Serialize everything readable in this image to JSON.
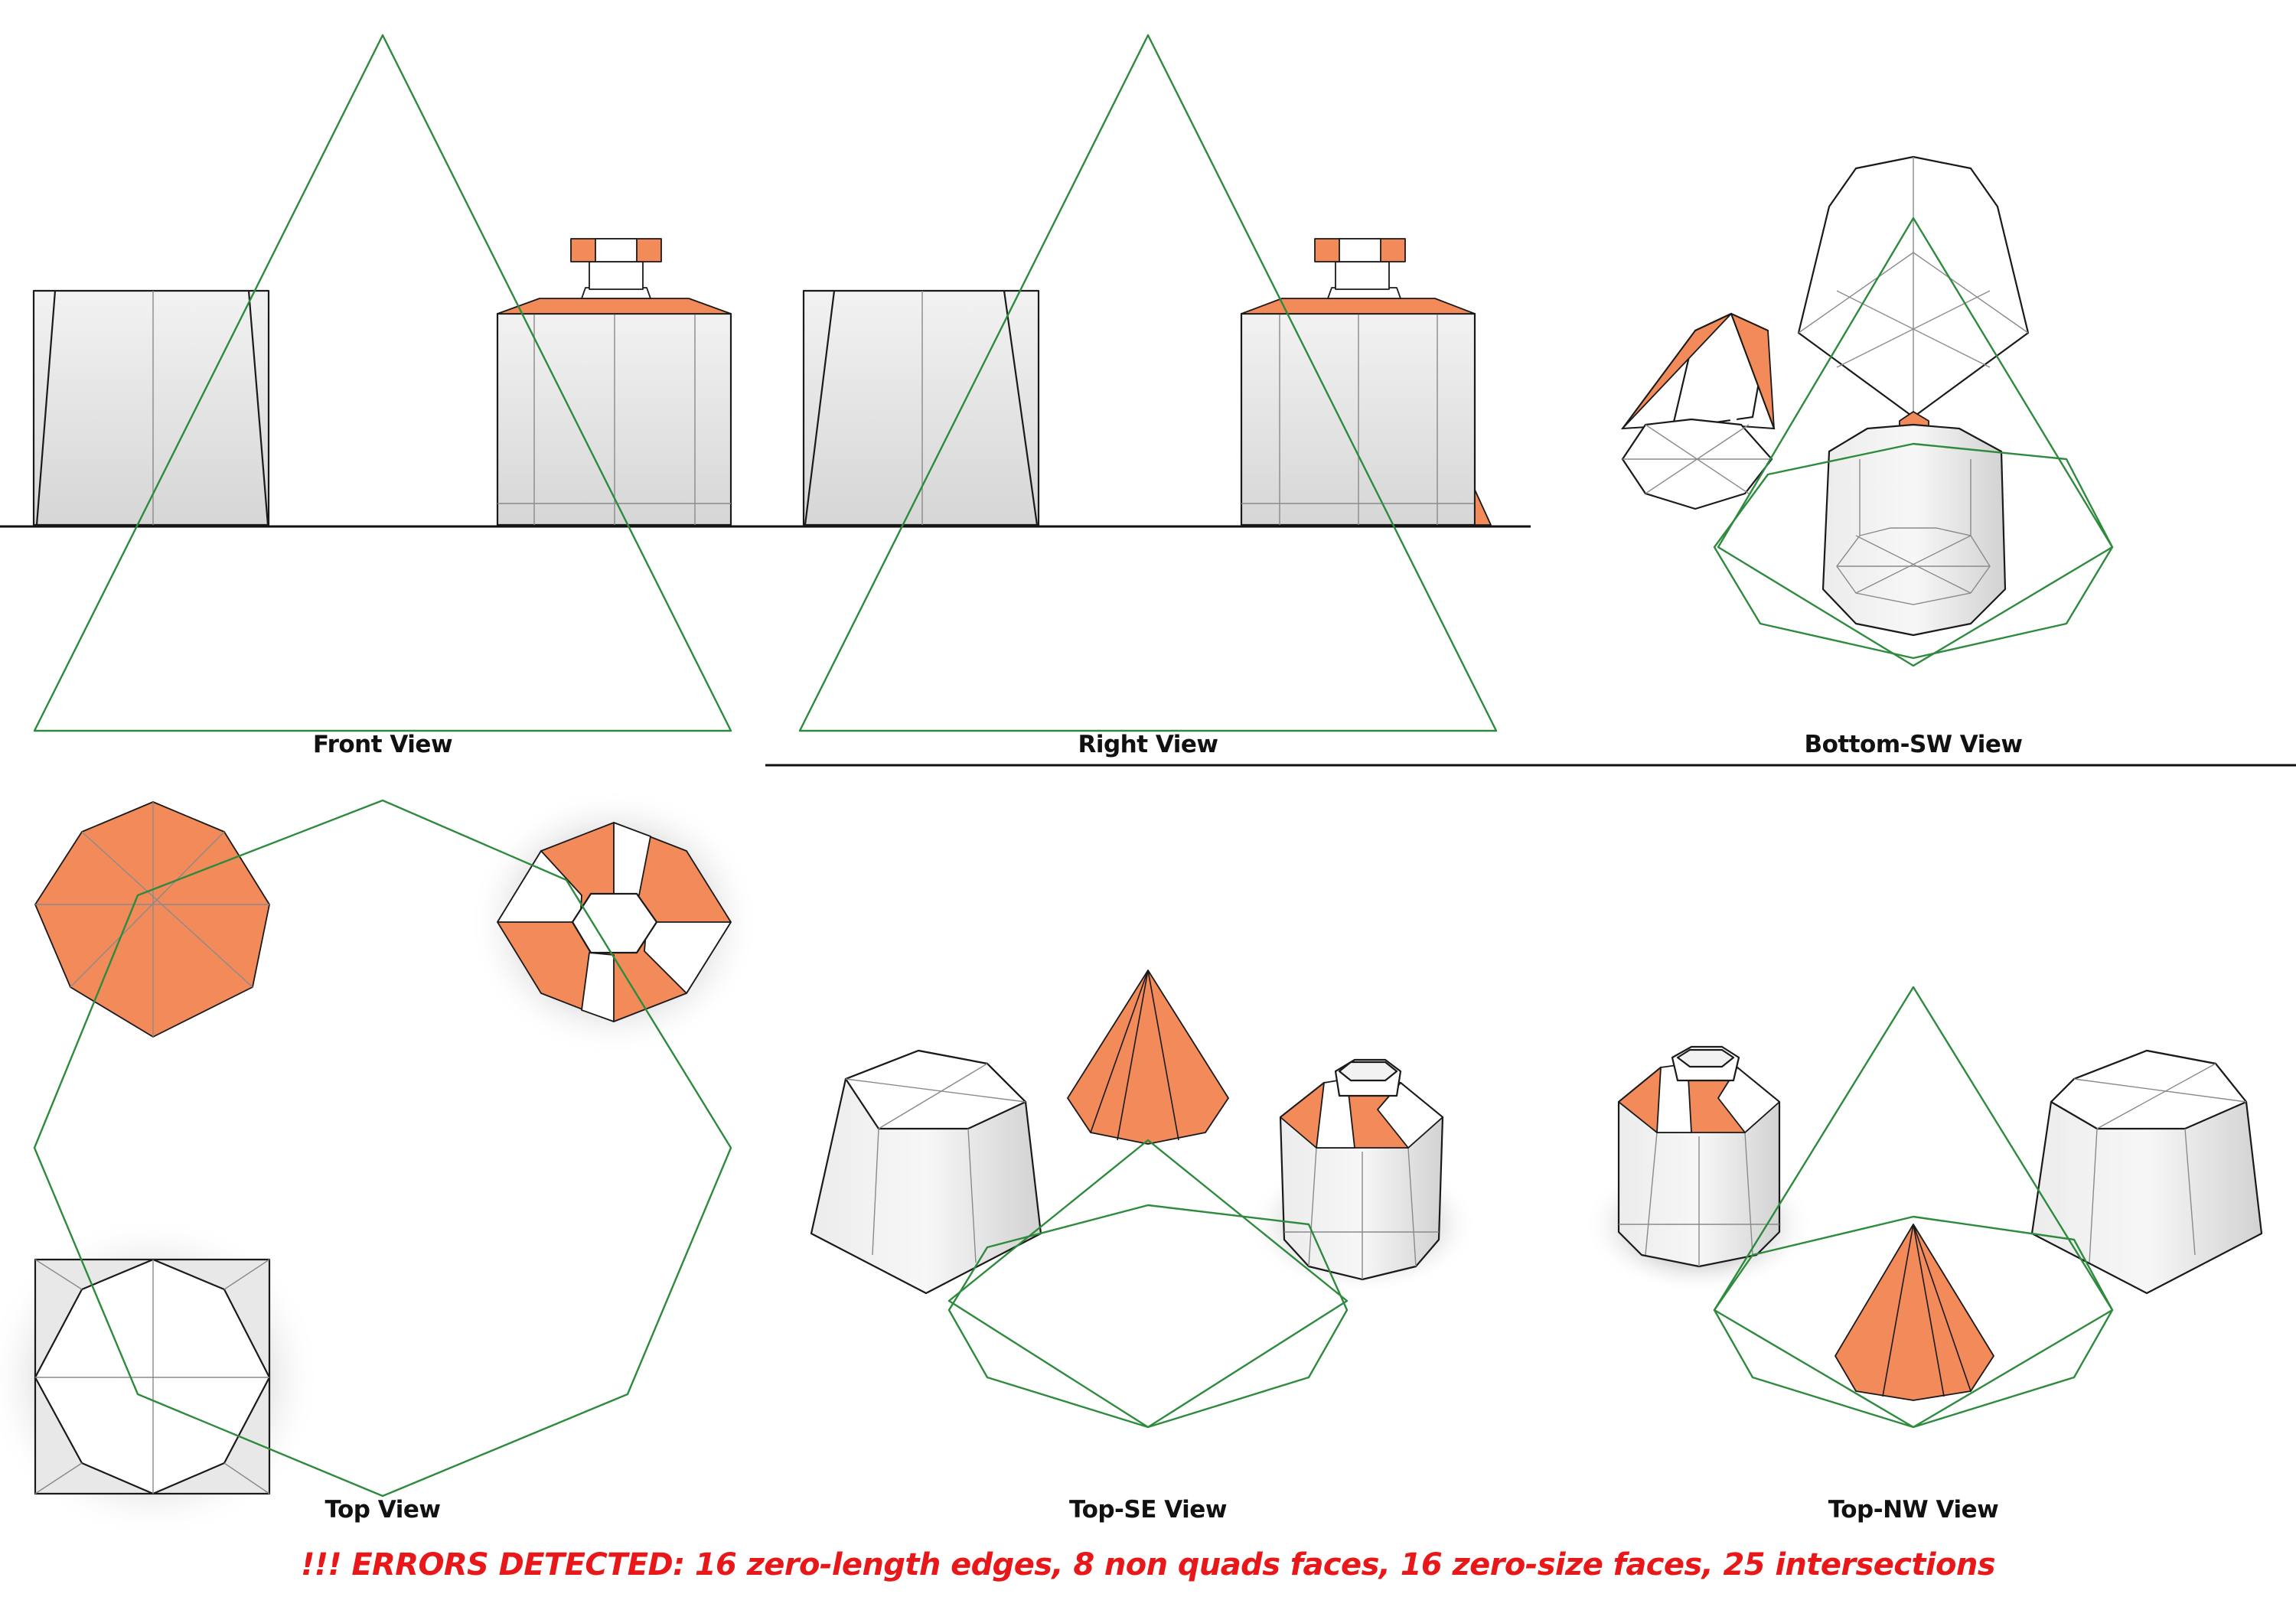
{
  "views": {
    "front": "Front View",
    "right": "Right View",
    "bottom_sw": "Bottom-SW View",
    "top": "Top View",
    "top_se": "Top-SE View",
    "top_nw": "Top-NW View"
  },
  "error_message": "!!! ERRORS DETECTED: 16 zero-length edges, 8 non quads faces, 16 zero-size faces, 25 intersections",
  "colors": {
    "face_highlight": "#f28a5a",
    "guide_outline": "#2e8b3e",
    "error_text": "#e8181a",
    "shading_gray": "#d9d9d9"
  }
}
